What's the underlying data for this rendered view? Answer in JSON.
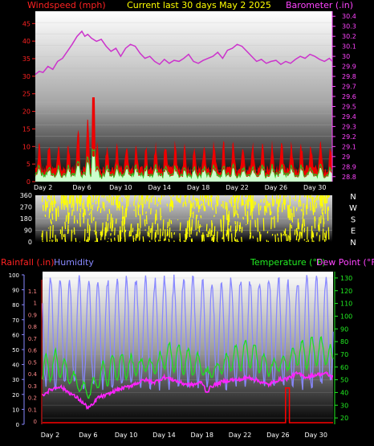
{
  "chart_data": [
    {
      "type": "line",
      "title": "Current last 30 days May 2 2025",
      "left_axis_label": "Windspeed (mph)",
      "right_axis_label": "Barometer (.in)",
      "left_ticks": [
        0,
        5,
        10,
        15,
        20,
        25,
        30,
        35,
        40,
        45
      ],
      "right_ticks": [
        "28.8",
        "28.9",
        "29",
        "29.1",
        "29.2",
        "29.3",
        "29.4",
        "29.5",
        "29.6",
        "29.7",
        "29.8",
        "29.9",
        "30",
        "30.1",
        "30.2",
        "30.3",
        "30.4"
      ],
      "ylim_left": [
        0,
        48.5
      ],
      "ylim_right": [
        28.75,
        30.45
      ],
      "x_ticks": [
        "Day 2",
        "Day 6",
        "Day 10",
        "Day 14",
        "Day 18",
        "Day 22",
        "Day 26",
        "Day 30"
      ],
      "xlim_days": [
        1.2,
        31.8
      ],
      "series": [
        {
          "name": "Barometer",
          "color": "#cc33cc",
          "axis": "right",
          "x": [
            1.2,
            1.6,
            2,
            2.5,
            3,
            3.5,
            4,
            4.5,
            5,
            5.5,
            6,
            6.3,
            6.6,
            7,
            7.5,
            8,
            8.5,
            9,
            9.5,
            10,
            10.5,
            11,
            11.5,
            12,
            12.5,
            13,
            13.5,
            14,
            14.5,
            15,
            15.5,
            16,
            16.5,
            17,
            17.5,
            18,
            18.5,
            19,
            19.5,
            20,
            20.5,
            21,
            21.5,
            22,
            22.5,
            23,
            23.5,
            24,
            24.5,
            25,
            25.5,
            26,
            26.5,
            27,
            27.5,
            28,
            28.5,
            29,
            29.5,
            30,
            30.5,
            31,
            31.5,
            31.8
          ],
          "y": [
            29.82,
            29.85,
            29.84,
            29.9,
            29.87,
            29.95,
            29.98,
            30.05,
            30.12,
            30.2,
            30.25,
            30.2,
            30.22,
            30.18,
            30.15,
            30.17,
            30.1,
            30.05,
            30.08,
            30.0,
            30.08,
            30.12,
            30.1,
            30.03,
            29.98,
            30.0,
            29.95,
            29.92,
            29.97,
            29.93,
            29.96,
            29.95,
            29.98,
            30.02,
            29.95,
            29.93,
            29.96,
            29.98,
            30.0,
            30.04,
            29.98,
            30.06,
            30.08,
            30.12,
            30.1,
            30.05,
            30.0,
            29.95,
            29.97,
            29.93,
            29.95,
            29.96,
            29.92,
            29.95,
            29.93,
            29.97,
            30.0,
            29.98,
            30.02,
            30.0,
            29.97,
            29.95,
            29.98,
            29.95
          ]
        }
      ],
      "wind_series": {
        "gust_color": "#ee0000",
        "avg_color": "#22cc22",
        "fill_color": "#ccffcc",
        "gust_peak": 24
      }
    },
    {
      "type": "scatter",
      "name": "Wind direction",
      "left_ticks": [
        0,
        90,
        180,
        270,
        360
      ],
      "right_labels": [
        "N",
        "W",
        "S",
        "E",
        "N"
      ],
      "ylim": [
        0,
        360
      ],
      "color": "#ffff00"
    },
    {
      "type": "line",
      "legend_left": [
        "Rainfall (.in)",
        "Humidity"
      ],
      "legend_right": [
        "Temperature (°F)",
        "Dew Point (°F)"
      ],
      "left_outer_ticks": [
        0,
        10,
        20,
        30,
        40,
        50,
        60,
        70,
        80,
        90,
        100
      ],
      "left_inner_ticks": [
        "0",
        "0.1",
        "0.2",
        "0.3",
        "0.4",
        "0.5",
        "0.6",
        "0.7",
        "0.8",
        "0.9",
        "1",
        "1.1"
      ],
      "right_ticks": [
        20,
        30,
        40,
        50,
        60,
        70,
        80,
        90,
        100,
        110,
        120,
        130
      ],
      "ylim_temp": [
        15,
        135
      ],
      "ylim_humidity": [
        0,
        100
      ],
      "colors": {
        "rain": "#ff0000",
        "humidity": "#8888ff",
        "temperature": "#22dd22",
        "dewpoint": "#ff22ff"
      },
      "rain": {
        "x": [
          26.8,
          27.2
        ],
        "y": [
          0.28,
          0.28
        ]
      },
      "dewpoint": {
        "x": [
          1.2,
          2,
          3,
          4,
          5,
          6,
          6.5,
          7,
          8,
          9,
          10,
          11,
          12,
          13,
          14,
          15,
          16,
          17,
          18,
          18.5,
          19,
          20,
          21,
          22,
          23,
          24,
          25,
          26,
          27,
          28,
          29,
          30,
          31,
          31.8
        ],
        "y": [
          38,
          42,
          45,
          40,
          35,
          28,
          30,
          36,
          38,
          42,
          44,
          47,
          50,
          48,
          52,
          50,
          47,
          46,
          48,
          40,
          45,
          48,
          50,
          50,
          52,
          49,
          46,
          50,
          51,
          55,
          52,
          54,
          55,
          52
        ]
      }
    }
  ]
}
